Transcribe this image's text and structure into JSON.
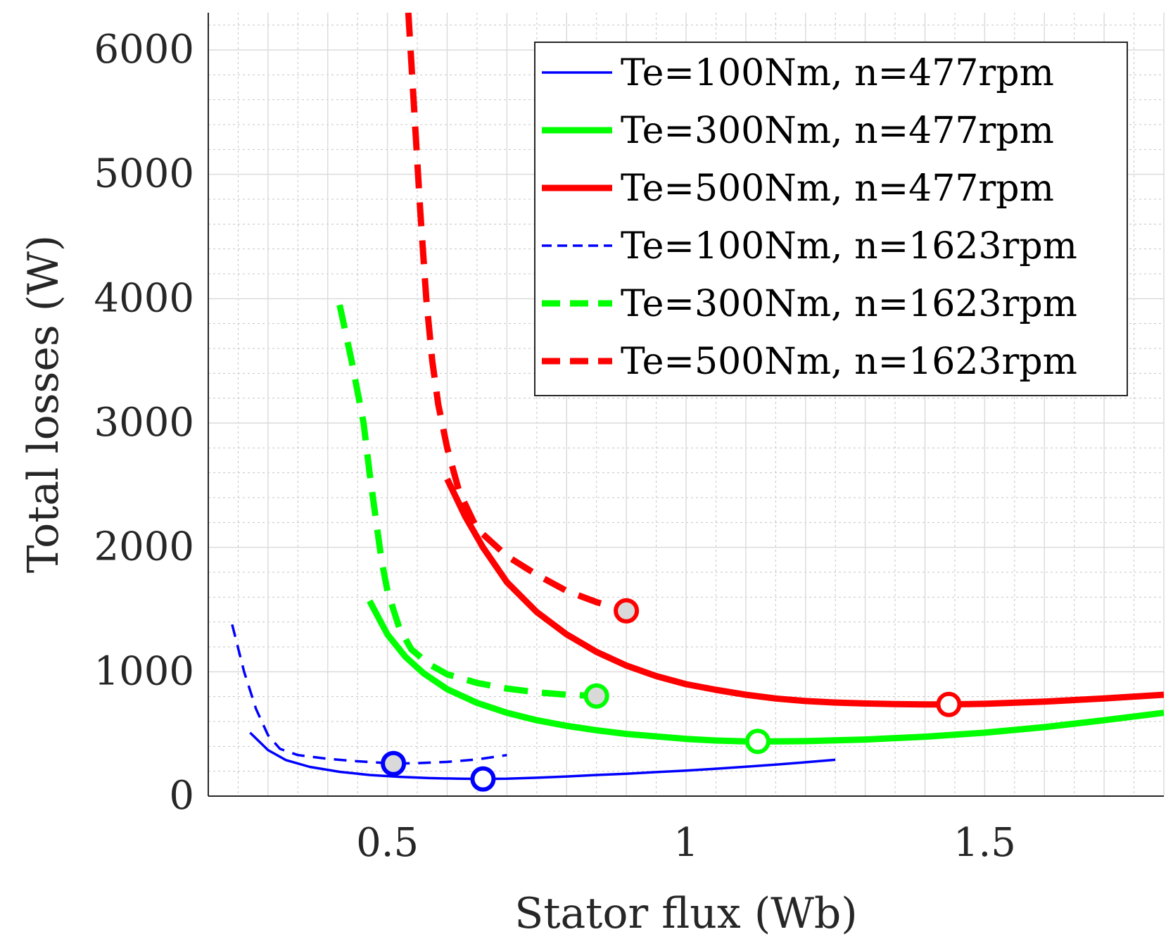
{
  "chart_data": {
    "type": "line",
    "title": "",
    "xlabel": "Stator flux (Wb)",
    "ylabel": "Total losses (W)",
    "xlim": [
      0.2,
      1.8
    ],
    "ylim": [
      0,
      6300
    ],
    "xticks": [
      0.5,
      1,
      1.5
    ],
    "xtick_labels": [
      "0.5",
      "1",
      "1.5"
    ],
    "yticks": [
      0,
      1000,
      2000,
      3000,
      4000,
      5000,
      6000
    ],
    "ytick_labels": [
      "0",
      "1000",
      "2000",
      "3000",
      "4000",
      "5000",
      "6000"
    ],
    "grid": true,
    "minor_grid": true,
    "legend_position": "top-right",
    "series": [
      {
        "name": "Te=100Nm, n=477rpm",
        "color": "#0000ff",
        "style": "solid",
        "weight": "thin",
        "x": [
          0.27,
          0.3,
          0.33,
          0.37,
          0.42,
          0.47,
          0.52,
          0.57,
          0.62,
          0.66,
          0.7,
          0.75,
          0.8,
          0.85,
          0.9,
          0.95,
          1.0,
          1.05,
          1.1,
          1.15,
          1.2,
          1.25
        ],
        "y": [
          510,
          370,
          290,
          235,
          195,
          170,
          155,
          145,
          140,
          138,
          140,
          148,
          158,
          170,
          180,
          193,
          205,
          220,
          236,
          253,
          272,
          292
        ],
        "marker": {
          "x": 0.66,
          "y": 138,
          "fill": "#ffffff"
        }
      },
      {
        "name": "Te=300Nm, n=477rpm",
        "color": "#00ff00",
        "style": "solid",
        "weight": "thick",
        "x": [
          0.47,
          0.5,
          0.53,
          0.56,
          0.6,
          0.65,
          0.7,
          0.75,
          0.8,
          0.85,
          0.9,
          0.95,
          1.0,
          1.05,
          1.1,
          1.15,
          1.2,
          1.3,
          1.4,
          1.5,
          1.6,
          1.7,
          1.8
        ],
        "y": [
          1570,
          1300,
          1120,
          990,
          860,
          750,
          670,
          610,
          565,
          530,
          500,
          480,
          460,
          447,
          440,
          440,
          442,
          455,
          478,
          510,
          555,
          610,
          670
        ],
        "marker": {
          "x": 1.12,
          "y": 440,
          "fill": "#ffffff"
        }
      },
      {
        "name": "Te=500Nm, n=477rpm",
        "color": "#ff0000",
        "style": "solid",
        "weight": "thick",
        "x": [
          0.6,
          0.63,
          0.66,
          0.7,
          0.75,
          0.8,
          0.85,
          0.9,
          0.95,
          1.0,
          1.05,
          1.1,
          1.15,
          1.2,
          1.25,
          1.3,
          1.35,
          1.4,
          1.44,
          1.5,
          1.6,
          1.7,
          1.8
        ],
        "y": [
          2550,
          2250,
          2000,
          1720,
          1480,
          1300,
          1160,
          1050,
          965,
          900,
          855,
          815,
          785,
          765,
          752,
          745,
          740,
          737,
          737,
          742,
          760,
          785,
          815
        ],
        "marker": {
          "x": 1.44,
          "y": 737,
          "fill": "#ffffff"
        }
      },
      {
        "name": "Te=100Nm, n=1623rpm",
        "color": "#0000ff",
        "style": "dashed",
        "weight": "thin",
        "x": [
          0.24,
          0.26,
          0.28,
          0.3,
          0.32,
          0.35,
          0.4,
          0.45,
          0.5,
          0.51,
          0.55,
          0.6,
          0.65,
          0.7
        ],
        "y": [
          1380,
          1000,
          700,
          490,
          380,
          330,
          300,
          280,
          265,
          262,
          265,
          275,
          295,
          330
        ],
        "marker": {
          "x": 0.51,
          "y": 262,
          "fill": "#d9d9d9"
        }
      },
      {
        "name": "Te=300Nm, n=1623rpm",
        "color": "#00ff00",
        "style": "dashed",
        "weight": "thick",
        "x": [
          0.42,
          0.44,
          0.46,
          0.47,
          0.48,
          0.49,
          0.5,
          0.52,
          0.54,
          0.57,
          0.6,
          0.65,
          0.7,
          0.75,
          0.8,
          0.85
        ],
        "y": [
          3950,
          3500,
          3000,
          2600,
          2250,
          1900,
          1650,
          1350,
          1180,
          1060,
          980,
          910,
          865,
          835,
          815,
          805
        ],
        "marker": {
          "x": 0.85,
          "y": 805,
          "fill": "#d9d9d9"
        }
      },
      {
        "name": "Te=500Nm, n=1623rpm",
        "color": "#ff0000",
        "style": "dashed",
        "weight": "thick",
        "x": [
          0.535,
          0.545,
          0.555,
          0.565,
          0.575,
          0.585,
          0.6,
          0.62,
          0.65,
          0.7,
          0.75,
          0.8,
          0.85,
          0.9
        ],
        "y": [
          6300,
          5500,
          4700,
          4000,
          3500,
          3150,
          2800,
          2450,
          2150,
          1930,
          1780,
          1650,
          1560,
          1490
        ],
        "marker": {
          "x": 0.9,
          "y": 1490,
          "fill": "#d9d9d9"
        }
      }
    ]
  }
}
